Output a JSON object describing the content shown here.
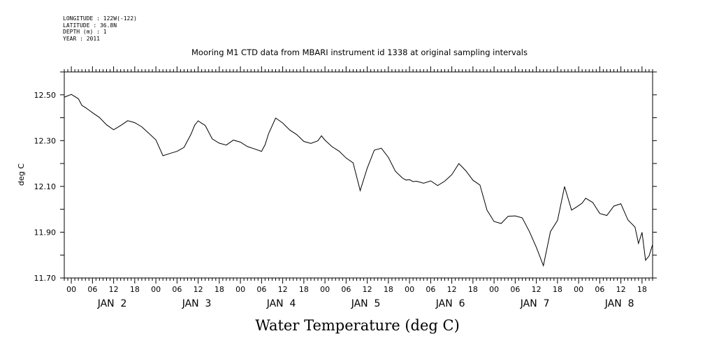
{
  "meta": {
    "longitude": "LONGITUDE : 122W(-122)",
    "latitude": "LATITUDE : 36.8N",
    "depth": "DEPTH (m) : 1",
    "year": "YEAR : 2011"
  },
  "chart_data": {
    "type": "line",
    "title": "Mooring M1 CTD data from MBARI instrument id 1338 at original sampling intervals",
    "xlabel": "Water Temperature (deg C)",
    "ylabel": "deg C",
    "ylim": [
      11.7,
      12.6
    ],
    "yticks": [
      "12.50",
      "12.30",
      "12.10",
      "11.90",
      "11.70"
    ],
    "x_hour_ticks": [
      "00",
      "06",
      "12",
      "18",
      "00",
      "06",
      "12",
      "18",
      "00",
      "06",
      "12",
      "18",
      "00",
      "06",
      "12",
      "18",
      "00",
      "06",
      "12",
      "18",
      "00",
      "06",
      "12",
      "18",
      "00",
      "06",
      "12",
      "18"
    ],
    "x_day_labels": [
      "JAN  2",
      "JAN  3",
      "JAN  4",
      "JAN  5",
      "JAN  6",
      "JAN  7",
      "JAN  8"
    ],
    "x_range_hours": [
      -2,
      165
    ],
    "grid": false,
    "series": [
      {
        "x": [
          -2,
          0,
          2,
          3,
          4,
          5,
          6,
          8,
          10,
          12,
          13,
          14,
          15,
          16,
          18,
          20,
          22,
          24,
          26,
          28,
          30,
          31,
          32,
          34,
          35,
          36,
          37,
          38,
          40,
          42,
          44,
          46,
          48,
          50,
          52,
          54,
          55,
          56,
          58,
          60,
          62,
          64,
          66,
          68,
          70,
          71,
          72,
          74,
          76,
          78,
          80,
          82,
          84,
          86,
          88,
          90,
          92,
          94,
          95,
          96,
          97,
          98,
          100,
          102,
          104,
          106,
          108,
          110,
          112,
          114,
          116,
          118,
          120,
          122,
          124,
          126,
          128,
          130,
          132,
          134,
          136,
          138,
          140,
          141,
          142,
          143,
          144,
          145,
          146,
          148,
          150,
          152,
          154,
          156,
          158,
          160,
          161,
          162,
          163,
          164,
          165
        ],
        "values": [
          12.49,
          12.5,
          12.48,
          12.45,
          12.44,
          12.43,
          12.42,
          12.4,
          12.37,
          12.35,
          12.36,
          12.37,
          12.38,
          12.39,
          12.38,
          12.36,
          12.33,
          12.3,
          12.23,
          12.24,
          12.25,
          12.26,
          12.27,
          12.33,
          12.37,
          12.39,
          12.38,
          12.37,
          12.31,
          12.29,
          12.28,
          12.3,
          12.29,
          12.27,
          12.26,
          12.25,
          12.28,
          12.33,
          12.4,
          12.38,
          12.35,
          12.33,
          12.3,
          12.29,
          12.3,
          12.32,
          12.3,
          12.27,
          12.25,
          12.22,
          12.2,
          12.08,
          12.18,
          12.26,
          12.27,
          12.23,
          12.17,
          12.14,
          12.13,
          12.13,
          12.12,
          12.12,
          12.11,
          12.12,
          12.1,
          12.12,
          12.15,
          12.2,
          12.17,
          12.13,
          12.11,
          12.0,
          11.95,
          11.94,
          11.97,
          11.97,
          11.96,
          11.9,
          11.83,
          11.75,
          11.9,
          11.95,
          12.1,
          12.05,
          12.0,
          12.01,
          12.02,
          12.03,
          12.05,
          12.03,
          11.98,
          11.97,
          12.01,
          12.02,
          11.95,
          11.92,
          11.85,
          11.9,
          11.78,
          11.8,
          11.85
        ]
      }
    ]
  }
}
